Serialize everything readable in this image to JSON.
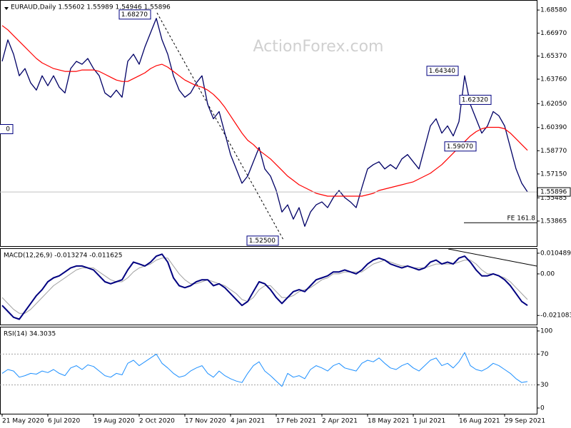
{
  "watermark": "ActionForex.com",
  "chart_data": [
    {
      "type": "line",
      "title": "EURAUD,Daily 1.55602 1.55989 1.54946 1.55896",
      "ylim": [
        1.5212,
        1.6928
      ],
      "yticks": [
        {
          "value": 1.6858,
          "label": "1.68580"
        },
        {
          "value": 1.6697,
          "label": "1.66970"
        },
        {
          "value": 1.6537,
          "label": "1.65370"
        },
        {
          "value": 1.6376,
          "label": "1.63760"
        },
        {
          "value": 1.6205,
          "label": "1.62050"
        },
        {
          "value": 1.6039,
          "label": "1.60390"
        },
        {
          "value": 1.5877,
          "label": "1.58770"
        },
        {
          "value": 1.5715,
          "label": "1.57150"
        },
        1.55485,
        1.53865
      ],
      "last_price": {
        "value": 1.55896,
        "label": "1.55896"
      },
      "fe_level": {
        "value": 1.5375,
        "label": "FE 161.8"
      },
      "annotations": [
        {
          "value": 1.6827,
          "label": "1.68270"
        },
        {
          "value": 1.525,
          "label": "1.52500"
        },
        {
          "value": 1.6434,
          "label": "1.64340"
        },
        {
          "value": 1.6232,
          "label": "1.62320"
        },
        {
          "value": 1.5907,
          "label": "1.59070"
        },
        {
          "label": "0"
        }
      ],
      "series": [
        {
          "color": "#000066",
          "width": 1.3,
          "values": [
            1.65,
            1.665,
            1.655,
            1.64,
            1.645,
            1.635,
            1.63,
            1.64,
            1.633,
            1.64,
            1.632,
            1.628,
            1.645,
            1.65,
            1.648,
            1.652,
            1.645,
            1.64,
            1.628,
            1.625,
            1.63,
            1.625,
            1.65,
            1.655,
            1.648,
            1.66,
            1.67,
            1.68,
            1.665,
            1.655,
            1.64,
            1.63,
            1.625,
            1.628,
            1.635,
            1.64,
            1.62,
            1.61,
            1.615,
            1.6,
            1.585,
            1.575,
            1.565,
            1.57,
            1.58,
            1.59,
            1.575,
            1.57,
            1.56,
            1.545,
            1.55,
            1.54,
            1.548,
            1.535,
            1.545,
            1.55,
            1.552,
            1.548,
            1.555,
            1.56,
            1.555,
            1.552,
            1.548,
            1.562,
            1.575,
            1.578,
            1.58,
            1.575,
            1.578,
            1.575,
            1.582,
            1.585,
            1.58,
            1.575,
            1.59,
            1.605,
            1.61,
            1.6,
            1.605,
            1.598,
            1.608,
            1.64,
            1.62,
            1.61,
            1.6,
            1.605,
            1.615,
            1.612,
            1.605,
            1.59,
            1.575,
            1.565,
            1.559
          ]
        },
        {
          "color": "#ff0000",
          "width": 1.2,
          "values": [
            1.675,
            1.672,
            1.668,
            1.664,
            1.66,
            1.656,
            1.652,
            1.649,
            1.647,
            1.645,
            1.644,
            1.643,
            1.643,
            1.643,
            1.644,
            1.644,
            1.644,
            1.643,
            1.641,
            1.639,
            1.637,
            1.636,
            1.636,
            1.638,
            1.64,
            1.642,
            1.645,
            1.647,
            1.648,
            1.646,
            1.643,
            1.64,
            1.637,
            1.635,
            1.633,
            1.632,
            1.63,
            1.627,
            1.623,
            1.618,
            1.612,
            1.606,
            1.6,
            1.595,
            1.592,
            1.588,
            1.585,
            1.582,
            1.578,
            1.574,
            1.57,
            1.567,
            1.564,
            1.562,
            1.56,
            1.558,
            1.557,
            1.556,
            1.556,
            1.556,
            1.556,
            1.556,
            1.556,
            1.556,
            1.557,
            1.558,
            1.56,
            1.561,
            1.562,
            1.563,
            1.564,
            1.565,
            1.566,
            1.568,
            1.57,
            1.572,
            1.575,
            1.578,
            1.582,
            1.586,
            1.59,
            1.594,
            1.598,
            1.601,
            1.603,
            1.604,
            1.604,
            1.604,
            1.603,
            1.6,
            1.596,
            1.592,
            1.588
          ]
        }
      ]
    },
    {
      "type": "line",
      "title": "MACD(12,26,9) -0.013274 -0.011625",
      "ylim": [
        -0.0257,
        0.013
      ],
      "yticks": [
        0.010489,
        {
          "value": 0,
          "label": "0.00"
        },
        -0.021083
      ],
      "series": [
        {
          "color": "#a0a0a0",
          "width": 1,
          "values": [
            -0.012,
            -0.015,
            -0.018,
            -0.02,
            -0.02,
            -0.018,
            -0.015,
            -0.012,
            -0.009,
            -0.006,
            -0.004,
            -0.002,
            0.0,
            0.002,
            0.003,
            0.003,
            0.003,
            0.001,
            -0.001,
            -0.003,
            -0.004,
            -0.004,
            -0.002,
            0.001,
            0.003,
            0.004,
            0.005,
            0.007,
            0.008,
            0.008,
            0.004,
            0.0,
            -0.003,
            -0.005,
            -0.005,
            -0.004,
            -0.003,
            -0.004,
            -0.005,
            -0.006,
            -0.008,
            -0.01,
            -0.013,
            -0.014,
            -0.012,
            -0.008,
            -0.006,
            -0.006,
            -0.009,
            -0.012,
            -0.012,
            -0.011,
            -0.009,
            -0.008,
            -0.007,
            -0.005,
            -0.003,
            -0.002,
            0.0,
            0.0,
            0.001,
            0.001,
            0.001,
            0.001,
            0.003,
            0.005,
            0.006,
            0.007,
            0.006,
            0.005,
            0.004,
            0.004,
            0.003,
            0.003,
            0.003,
            0.004,
            0.005,
            0.005,
            0.005,
            0.005,
            0.006,
            0.007,
            0.007,
            0.005,
            0.002,
            0.0,
            0.0,
            -0.001,
            -0.002,
            -0.004,
            -0.007,
            -0.01,
            -0.013
          ]
        },
        {
          "color": "#000080",
          "width": 2,
          "values": [
            -0.016,
            -0.019,
            -0.022,
            -0.023,
            -0.019,
            -0.015,
            -0.011,
            -0.008,
            -0.004,
            -0.002,
            -0.001,
            0.001,
            0.003,
            0.004,
            0.004,
            0.003,
            0.002,
            -0.001,
            -0.004,
            -0.005,
            -0.004,
            -0.003,
            0.002,
            0.006,
            0.005,
            0.004,
            0.006,
            0.009,
            0.01,
            0.006,
            -0.002,
            -0.006,
            -0.007,
            -0.006,
            -0.004,
            -0.003,
            -0.003,
            -0.006,
            -0.005,
            -0.007,
            -0.01,
            -0.013,
            -0.016,
            -0.014,
            -0.009,
            -0.004,
            -0.005,
            -0.008,
            -0.012,
            -0.015,
            -0.012,
            -0.009,
            -0.008,
            -0.009,
            -0.006,
            -0.003,
            -0.002,
            -0.001,
            0.001,
            0.001,
            0.002,
            0.001,
            0.0,
            0.002,
            0.005,
            0.007,
            0.008,
            0.007,
            0.005,
            0.004,
            0.003,
            0.004,
            0.003,
            0.002,
            0.003,
            0.006,
            0.007,
            0.005,
            0.006,
            0.005,
            0.008,
            0.009,
            0.006,
            0.002,
            -0.001,
            -0.001,
            0.0,
            -0.001,
            -0.003,
            -0.006,
            -0.01,
            -0.014,
            -0.016
          ]
        }
      ]
    },
    {
      "type": "line",
      "title": "RSI(14) 34.3035",
      "ylim": [
        -7.4,
        105.5
      ],
      "yticks": [
        100,
        70,
        30,
        0
      ],
      "levels": [
        70,
        30
      ],
      "categories": [
        "21 May 2020",
        null,
        null,
        null,
        null,
        null,
        null,
        null,
        "6 Jul 2020",
        null,
        null,
        null,
        null,
        null,
        null,
        null,
        "19 Aug 2020",
        null,
        null,
        null,
        null,
        null,
        null,
        null,
        "2 Oct 2020",
        null,
        null,
        null,
        null,
        null,
        null,
        null,
        "17 Nov 2020",
        null,
        null,
        null,
        null,
        null,
        null,
        null,
        "4 Jan 2021",
        null,
        null,
        null,
        null,
        null,
        null,
        null,
        "17 Feb 2021",
        null,
        null,
        null,
        null,
        null,
        null,
        null,
        "2 Apr 2021",
        null,
        null,
        null,
        null,
        null,
        null,
        null,
        "18 May 2021",
        null,
        null,
        null,
        null,
        null,
        null,
        null,
        "1 Jul 2021",
        null,
        null,
        null,
        null,
        null,
        null,
        null,
        "16 Aug 2021",
        null,
        null,
        null,
        null,
        null,
        null,
        null,
        "29 Sep 2021",
        null,
        null,
        null,
        null
      ],
      "series": [
        {
          "color": "#1e90ff",
          "width": 1,
          "values": [
            45,
            50,
            48,
            40,
            42,
            45,
            44,
            48,
            46,
            50,
            45,
            42,
            52,
            55,
            50,
            56,
            54,
            48,
            42,
            40,
            45,
            43,
            58,
            62,
            55,
            60,
            65,
            70,
            58,
            52,
            45,
            40,
            42,
            48,
            52,
            55,
            45,
            40,
            48,
            42,
            38,
            35,
            33,
            45,
            55,
            60,
            48,
            42,
            35,
            28,
            45,
            40,
            42,
            38,
            50,
            55,
            52,
            48,
            55,
            58,
            52,
            50,
            48,
            58,
            62,
            60,
            65,
            58,
            52,
            50,
            55,
            58,
            52,
            48,
            55,
            62,
            65,
            55,
            58,
            52,
            60,
            72,
            55,
            50,
            48,
            52,
            58,
            55,
            50,
            45,
            38,
            33,
            34.3
          ]
        }
      ]
    }
  ]
}
